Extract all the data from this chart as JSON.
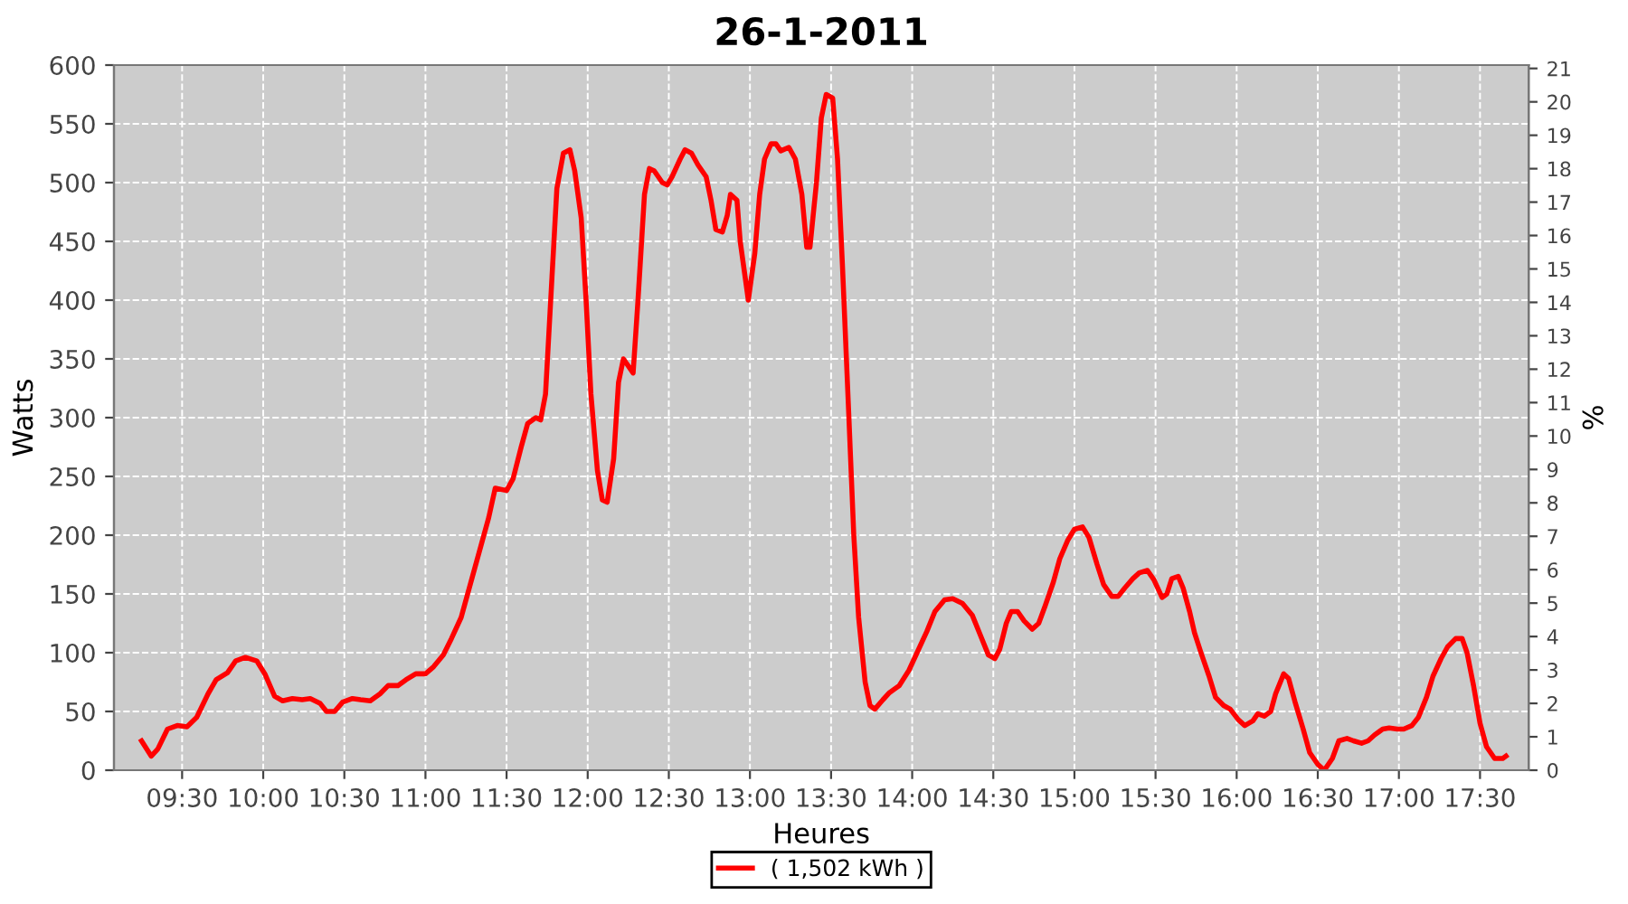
{
  "chart_data": {
    "type": "line",
    "title": "26-1-2011",
    "xlabel": "Heures",
    "ylabel": "Watts",
    "y2label": "%",
    "xlim": [
      9.08,
      17.8
    ],
    "ylim": [
      0,
      600
    ],
    "y2lim": [
      0,
      21.1
    ],
    "xticks": [
      {
        "value": 9.5,
        "label": "09:30"
      },
      {
        "value": 10,
        "label": "10:00"
      },
      {
        "value": 10.5,
        "label": "10:30"
      },
      {
        "value": 11,
        "label": "11:00"
      },
      {
        "value": 11.5,
        "label": "11:30"
      },
      {
        "value": 12,
        "label": "12:00"
      },
      {
        "value": 12.5,
        "label": "12:30"
      },
      {
        "value": 13,
        "label": "13:00"
      },
      {
        "value": 13.5,
        "label": "13:30"
      },
      {
        "value": 14,
        "label": "14:00"
      },
      {
        "value": 14.5,
        "label": "14:30"
      },
      {
        "value": 15,
        "label": "15:00"
      },
      {
        "value": 15.5,
        "label": "15:30"
      },
      {
        "value": 16,
        "label": "16:00"
      },
      {
        "value": 16.5,
        "label": "16:30"
      },
      {
        "value": 17,
        "label": "17:00"
      },
      {
        "value": 17.5,
        "label": "17:30"
      }
    ],
    "yticks": [
      0,
      50,
      100,
      150,
      200,
      250,
      300,
      350,
      400,
      450,
      500,
      550,
      600
    ],
    "y2ticks": [
      0,
      1,
      2,
      3,
      4,
      5,
      6,
      7,
      8,
      9,
      10,
      11,
      12,
      13,
      14,
      15,
      16,
      17,
      18,
      19,
      20,
      21
    ],
    "grid": true,
    "legend": "bottom",
    "marker": "none",
    "line_style": "solid",
    "series": [
      {
        "name": "( 1,502 kWh )",
        "color": "#ff0000",
        "x": [
          9.25,
          9.31,
          9.35,
          9.41,
          9.47,
          9.53,
          9.59,
          9.66,
          9.71,
          9.78,
          9.83,
          9.89,
          9.96,
          10.01,
          10.07,
          10.12,
          10.18,
          10.24,
          10.29,
          10.35,
          10.39,
          10.44,
          10.49,
          10.55,
          10.6,
          10.66,
          10.72,
          10.77,
          10.83,
          10.88,
          10.94,
          11.0,
          11.05,
          11.11,
          11.16,
          11.22,
          11.27,
          11.33,
          11.39,
          11.43,
          11.5,
          11.54,
          11.59,
          11.63,
          11.68,
          11.71,
          11.74,
          11.78,
          11.81,
          11.85,
          11.89,
          11.92,
          11.96,
          11.99,
          12.02,
          12.06,
          12.09,
          12.12,
          12.16,
          12.19,
          12.22,
          12.26,
          12.28,
          12.31,
          12.35,
          12.38,
          12.41,
          12.46,
          12.49,
          12.52,
          12.57,
          12.6,
          12.64,
          12.68,
          12.73,
          12.76,
          12.79,
          12.83,
          12.86,
          12.88,
          12.92,
          12.94,
          12.97,
          12.99,
          13.03,
          13.06,
          13.09,
          13.13,
          13.16,
          13.19,
          13.24,
          13.28,
          13.32,
          13.35,
          13.37,
          13.41,
          13.44,
          13.47,
          13.51,
          13.54,
          13.57,
          13.61,
          13.64,
          13.67,
          13.71,
          13.74,
          13.77,
          13.82,
          13.86,
          13.92,
          13.98,
          14.03,
          14.09,
          14.14,
          14.2,
          14.25,
          14.31,
          14.37,
          14.42,
          14.47,
          14.51,
          14.54,
          14.58,
          14.61,
          14.65,
          14.69,
          14.74,
          14.78,
          14.82,
          14.87,
          14.91,
          14.96,
          15.0,
          15.05,
          15.09,
          15.14,
          15.18,
          15.23,
          15.27,
          15.31,
          15.36,
          15.4,
          15.45,
          15.49,
          15.54,
          15.57,
          15.6,
          15.64,
          15.67,
          15.71,
          15.74,
          15.78,
          15.83,
          15.87,
          15.92,
          15.96,
          16.01,
          16.05,
          16.1,
          16.13,
          16.17,
          16.21,
          16.24,
          16.29,
          16.32,
          16.36,
          16.41,
          16.45,
          16.5,
          16.54,
          16.59,
          16.63,
          16.68,
          16.72,
          16.77,
          16.81,
          16.85,
          16.9,
          16.94,
          16.99,
          17.03,
          17.08,
          17.12,
          17.17,
          17.21,
          17.26,
          17.3,
          17.35,
          17.39,
          17.42,
          17.46,
          17.5,
          17.54,
          17.59,
          17.64,
          17.66
        ],
        "values": [
          25,
          12,
          18,
          35,
          38,
          37,
          45,
          65,
          77,
          83,
          93,
          96,
          93,
          82,
          63,
          59,
          61,
          60,
          61,
          57,
          50,
          50,
          58,
          61,
          60,
          59,
          65,
          72,
          72,
          77,
          82,
          82,
          88,
          98,
          112,
          130,
          155,
          185,
          215,
          240,
          238,
          248,
          275,
          295,
          300,
          298,
          320,
          420,
          495,
          525,
          528,
          510,
          470,
          400,
          320,
          255,
          230,
          228,
          265,
          330,
          350,
          342,
          338,
          400,
          490,
          512,
          510,
          500,
          498,
          505,
          520,
          528,
          525,
          515,
          505,
          485,
          460,
          458,
          472,
          490,
          485,
          450,
          420,
          400,
          440,
          490,
          520,
          533,
          533,
          527,
          530,
          520,
          490,
          445,
          445,
          500,
          555,
          575,
          572,
          520,
          430,
          300,
          200,
          130,
          75,
          55,
          52,
          60,
          66,
          72,
          85,
          100,
          118,
          135,
          145,
          146,
          142,
          132,
          115,
          98,
          95,
          103,
          125,
          135,
          135,
          127,
          120,
          125,
          140,
          160,
          180,
          196,
          205,
          207,
          198,
          175,
          158,
          148,
          148,
          155,
          163,
          168,
          170,
          162,
          147,
          150,
          163,
          165,
          155,
          135,
          117,
          100,
          80,
          62,
          55,
          52,
          43,
          38,
          42,
          48,
          46,
          50,
          65,
          82,
          78,
          58,
          35,
          15,
          5,
          0,
          10,
          25,
          27,
          25,
          23,
          25,
          30,
          35,
          36,
          35,
          35,
          38,
          45,
          62,
          80,
          95,
          105,
          112,
          112,
          100,
          72,
          40,
          20,
          10,
          10,
          12
        ]
      }
    ]
  }
}
